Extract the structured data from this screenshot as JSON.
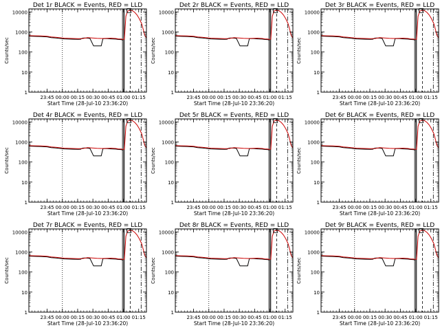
{
  "chart_data": [
    {
      "type": "line",
      "title": "Det 1r BLACK = Events, RED = LLD"
    },
    {
      "type": "line",
      "title": "Det 2r BLACK = Events, RED = LLD"
    },
    {
      "type": "line",
      "title": "Det 3r BLACK = Events, RED = LLD"
    },
    {
      "type": "line",
      "title": "Det 4r BLACK = Events, RED = LLD"
    },
    {
      "type": "line",
      "title": "Det 5r BLACK = Events, RED = LLD"
    },
    {
      "type": "line",
      "title": "Det 6r BLACK = Events, RED = LLD"
    },
    {
      "type": "line",
      "title": "Det 7r BLACK = Events, RED = LLD"
    },
    {
      "type": "line",
      "title": "Det 8r BLACK = Events, RED = LLD"
    },
    {
      "type": "line",
      "title": "Det 9r BLACK = Events, RED = LLD"
    }
  ],
  "shared": {
    "xlabel": "Start Time (28-Jul-10 23:36:20)",
    "ylabel": "Counts/sec",
    "x_ticks": [
      {
        "t": 0.1553,
        "label": "23:45"
      },
      {
        "t": 0.2851,
        "label": "00:00"
      },
      {
        "t": 0.4149,
        "label": "00:15"
      },
      {
        "t": 0.5447,
        "label": "00:30"
      },
      {
        "t": 0.6745,
        "label": "00:45"
      },
      {
        "t": 0.8043,
        "label": "01:00"
      },
      {
        "t": 0.934,
        "label": "01:15"
      }
    ],
    "x_minor_count": 5,
    "y_scale": "log",
    "y_range": [
      1,
      14000
    ],
    "y_ticks": [
      {
        "v": 1,
        "label": "1"
      },
      {
        "v": 10,
        "label": "10"
      },
      {
        "v": 100,
        "label": "100"
      },
      {
        "v": 1000,
        "label": "1000"
      },
      {
        "v": 10000,
        "label": "10000"
      }
    ],
    "series": [
      {
        "name": "Events",
        "color": "#000000",
        "points": [
          [
            0.0,
            620
          ],
          [
            0.05,
            600
          ],
          [
            0.1,
            590
          ],
          [
            0.155,
            570
          ],
          [
            0.19,
            520
          ],
          [
            0.23,
            500
          ],
          [
            0.27,
            470
          ],
          [
            0.3,
            450
          ],
          [
            0.34,
            440
          ],
          [
            0.38,
            430
          ],
          [
            0.42,
            425
          ],
          [
            0.44,
            430
          ],
          [
            0.455,
            490
          ],
          [
            0.47,
            500
          ],
          [
            0.5,
            490
          ],
          [
            0.52,
            470
          ],
          [
            0.55,
            200
          ],
          [
            0.6,
            200
          ],
          [
            0.615,
            200
          ],
          [
            0.63,
            460
          ],
          [
            0.66,
            470
          ],
          [
            0.7,
            450
          ],
          [
            0.74,
            440
          ],
          [
            0.76,
            420
          ],
          [
            0.79,
            410
          ],
          [
            0.8,
            380
          ]
        ]
      },
      {
        "name": "LLD",
        "color": "#cc0000",
        "points": [
          [
            0.0,
            650
          ],
          [
            0.05,
            640
          ],
          [
            0.1,
            630
          ],
          [
            0.155,
            610
          ],
          [
            0.19,
            560
          ],
          [
            0.23,
            540
          ],
          [
            0.27,
            510
          ],
          [
            0.3,
            490
          ],
          [
            0.34,
            480
          ],
          [
            0.38,
            470
          ],
          [
            0.42,
            460
          ],
          [
            0.46,
            470
          ],
          [
            0.5,
            520
          ],
          [
            0.54,
            500
          ],
          [
            0.58,
            480
          ],
          [
            0.62,
            470
          ],
          [
            0.66,
            480
          ],
          [
            0.7,
            490
          ],
          [
            0.74,
            470
          ],
          [
            0.76,
            450
          ],
          [
            0.79,
            440
          ],
          [
            0.8,
            420
          ],
          [
            0.812,
            430
          ],
          [
            0.825,
            6000
          ],
          [
            0.84,
            11000
          ],
          [
            0.86,
            12000
          ],
          [
            0.88,
            11500
          ],
          [
            0.9,
            9500
          ],
          [
            0.92,
            7000
          ],
          [
            0.94,
            4500
          ],
          [
            0.96,
            2500
          ],
          [
            0.975,
            1200
          ],
          [
            0.985,
            700
          ],
          [
            1.0,
            500
          ]
        ]
      }
    ],
    "vlines": [
      {
        "t": 0.285,
        "style": "dotted"
      },
      {
        "t": 0.796,
        "style": "solid"
      },
      {
        "t": 0.806,
        "style": "solid"
      },
      {
        "t": 0.812,
        "style": "solid"
      },
      {
        "t": 0.863,
        "style": "dashed"
      },
      {
        "t": 0.955,
        "style": "dashdot"
      }
    ],
    "markers": [
      {
        "t": 0.852,
        "v": 11500,
        "shape": "square"
      }
    ]
  }
}
